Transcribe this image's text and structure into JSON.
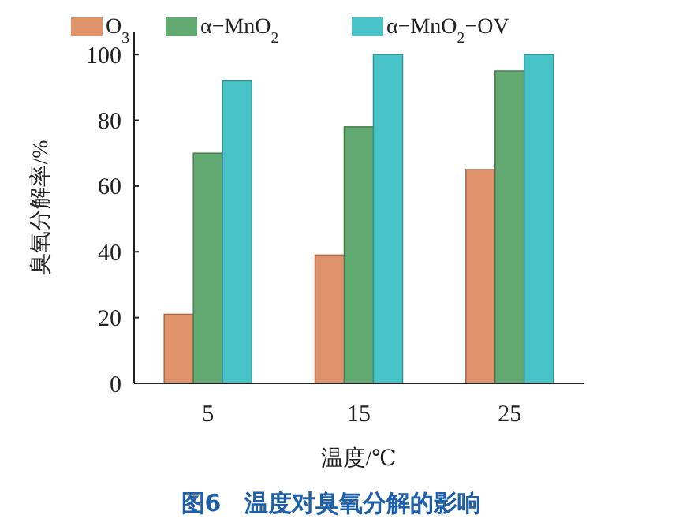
{
  "chart_data": {
    "type": "bar",
    "title": "图6　温度对臭氧分解的影响",
    "xlabel": "温度/℃",
    "ylabel": "臭氧分解率/%",
    "categories": [
      "5",
      "15",
      "25"
    ],
    "series": [
      {
        "name": "O$_{3}$",
        "color": "#e0926a",
        "values": [
          21,
          39,
          65
        ]
      },
      {
        "name": "α−MnO$_{2}$",
        "color": "#62aa72",
        "values": [
          70,
          78,
          95
        ]
      },
      {
        "name": "α−MnO$_{2}$−OV",
        "color": "#48c4c8",
        "values": [
          92,
          100,
          100
        ]
      }
    ],
    "ylim": [
      0,
      107
    ],
    "yticks": [
      0,
      20,
      40,
      60,
      80,
      100
    ],
    "grid": false,
    "legend": "top"
  }
}
